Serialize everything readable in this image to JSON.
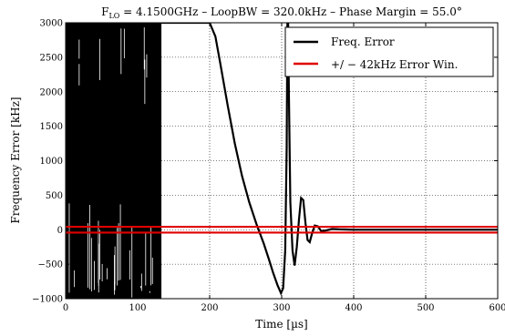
{
  "chart_data": {
    "type": "line",
    "title": "F_LO = 4.1500GHz – LoopBW = 320.0kHz – Phase Margin = 55.0°",
    "title_parts": {
      "f": "F",
      "sub": "LO",
      "rest": " = 4.1500GHz – LoopBW = 320.0kHz – Phase Margin = 55.0°"
    },
    "xlabel": "Time [µs]",
    "ylabel": "Frequency Error [kHz]",
    "xlim": [
      0,
      600
    ],
    "ylim": [
      -1000,
      3000
    ],
    "x_ticks": [
      0,
      100,
      200,
      300,
      400,
      500,
      600
    ],
    "x_tick_labels": [
      "0",
      "100",
      "200",
      "300",
      "400",
      "500",
      "600"
    ],
    "y_ticks": [
      -1000,
      -500,
      0,
      500,
      1000,
      1500,
      2000,
      2500,
      3000
    ],
    "y_tick_labels": [
      "−1000",
      "−500",
      "0",
      "500",
      "1000",
      "1500",
      "2000",
      "2500",
      "3000"
    ],
    "grid": true,
    "legend_position": "top-right",
    "series": [
      {
        "name": "Freq. Error",
        "color": "#000000",
        "noise_region": {
          "x_start": 0,
          "x_end": 133,
          "y_min": -1000,
          "y_max": 3000
        },
        "points": [
          [
            133,
            3000
          ],
          [
            150,
            3000
          ],
          [
            200,
            3000
          ],
          [
            208,
            2800
          ],
          [
            215,
            2400
          ],
          [
            225,
            1800
          ],
          [
            235,
            1250
          ],
          [
            245,
            780
          ],
          [
            255,
            400
          ],
          [
            265,
            80
          ],
          [
            275,
            -200
          ],
          [
            282,
            -420
          ],
          [
            288,
            -620
          ],
          [
            294,
            -800
          ],
          [
            299,
            -920
          ],
          [
            302,
            -850
          ],
          [
            305,
            -300
          ],
          [
            307,
            1200
          ],
          [
            308,
            3000
          ],
          [
            309,
            3000
          ],
          [
            310,
            2000
          ],
          [
            312,
            400
          ],
          [
            315,
            -300
          ],
          [
            318,
            -520
          ],
          [
            321,
            -250
          ],
          [
            324,
            150
          ],
          [
            327,
            460
          ],
          [
            330,
            430
          ],
          [
            333,
            100
          ],
          [
            336,
            -150
          ],
          [
            339,
            -180
          ],
          [
            342,
            -60
          ],
          [
            346,
            60
          ],
          [
            350,
            50
          ],
          [
            355,
            -20
          ],
          [
            362,
            -10
          ],
          [
            370,
            10
          ],
          [
            380,
            5
          ],
          [
            400,
            0
          ],
          [
            450,
            0
          ],
          [
            500,
            0
          ],
          [
            550,
            0
          ],
          [
            600,
            0
          ]
        ]
      },
      {
        "name": "+/− 42kHz Error Win.",
        "color": "#e00000",
        "values": [
          42,
          -42
        ]
      }
    ]
  },
  "legend": {
    "items": [
      {
        "label": "Freq. Error",
        "color": "#000000"
      },
      {
        "label": "+/ −  42kHz Error Win.",
        "color": "#e00000"
      }
    ]
  }
}
